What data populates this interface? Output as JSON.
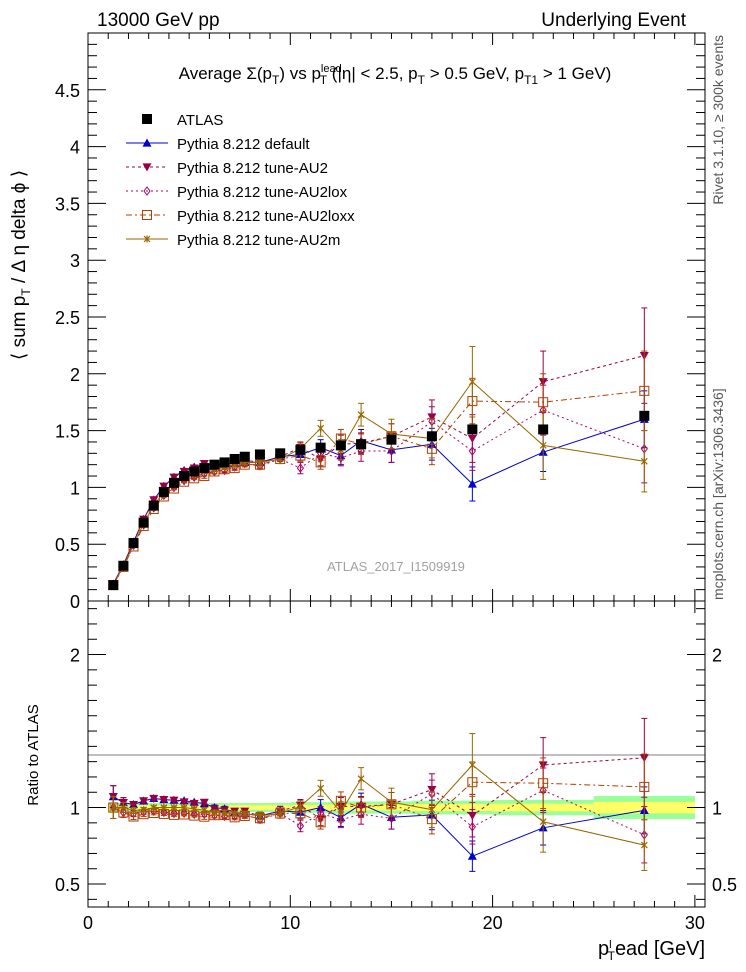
{
  "header": {
    "left": "13000 GeV pp",
    "right": "Underlying Event"
  },
  "side_labels": {
    "rivet": "Rivet 3.1.10, ≥ 300k events",
    "mcplots": "mcplots.cern.ch [arXiv:1306.3436]"
  },
  "watermark": "ATLAS_2017_I1509919",
  "colors": {
    "ATLAS": "#000000",
    "default": "#0000cc",
    "AU2": "#990044",
    "AU2lox": "#aa0066",
    "AU2loxx": "#b04000",
    "AU2m": "#996600",
    "band_inner": "#ffff66",
    "band_outer": "#99ff99"
  },
  "chart_data": {
    "type": "scatter",
    "title": "Average Σ(p_T) vs p_T^lead (|η| < 2.5, p_T > 0.5 GeV, p_T1 > 1 GeV)",
    "xlabel": "p_T^lead [GeV]",
    "ylabel": "⟨ sum p_T / Δ η delta ϕ ⟩",
    "ratio_ylabel": "Ratio to ATLAS",
    "xlim": [
      0,
      30.5
    ],
    "ylim": [
      0,
      5
    ],
    "ratio_ylim": [
      0.35,
      2.35
    ],
    "x_ticks": [
      0,
      10,
      20,
      30
    ],
    "y_ticks": [
      0,
      0.5,
      1,
      1.5,
      2,
      2.5,
      3,
      3.5,
      4,
      4.5
    ],
    "ratio_y_ticks": [
      0.5,
      1,
      2
    ],
    "legend_position": "top-left",
    "x": [
      1.25,
      1.75,
      2.25,
      2.75,
      3.25,
      3.75,
      4.25,
      4.75,
      5.25,
      5.75,
      6.25,
      6.75,
      7.25,
      7.75,
      8.5,
      9.5,
      10.5,
      11.5,
      12.5,
      13.5,
      15.0,
      17.0,
      19.0,
      22.5,
      27.5
    ],
    "series": [
      {
        "key": "ATLAS",
        "name": "ATLAS",
        "values": [
          0.14,
          0.31,
          0.51,
          0.69,
          0.84,
          0.96,
          1.04,
          1.1,
          1.14,
          1.17,
          1.2,
          1.22,
          1.25,
          1.27,
          1.29,
          1.3,
          1.33,
          1.35,
          1.37,
          1.38,
          1.42,
          1.45,
          1.51,
          1.51,
          1.63
        ]
      },
      {
        "key": "default",
        "name": "Pythia 8.212 default",
        "values": [
          0.15,
          0.32,
          0.52,
          0.72,
          0.89,
          1.01,
          1.09,
          1.15,
          1.18,
          1.2,
          1.2,
          1.21,
          1.21,
          1.22,
          1.22,
          1.27,
          1.29,
          1.35,
          1.28,
          1.41,
          1.33,
          1.38,
          1.03,
          1.31,
          1.6
        ],
        "errors": [
          0.01,
          0.01,
          0.01,
          0.01,
          0.01,
          0.01,
          0.01,
          0.01,
          0.01,
          0.02,
          0.02,
          0.02,
          0.02,
          0.02,
          0.03,
          0.04,
          0.05,
          0.07,
          0.08,
          0.1,
          0.11,
          0.14,
          0.15,
          0.17,
          0.25
        ]
      },
      {
        "key": "AU2",
        "name": "Pythia 8.212 tune-AU2",
        "values": [
          0.15,
          0.32,
          0.52,
          0.72,
          0.89,
          1.01,
          1.09,
          1.14,
          1.17,
          1.21,
          1.19,
          1.2,
          1.22,
          1.24,
          1.22,
          1.27,
          1.35,
          1.25,
          1.38,
          1.39,
          1.45,
          1.62,
          1.43,
          1.93,
          2.16
        ],
        "errors": [
          0.01,
          0.01,
          0.01,
          0.01,
          0.01,
          0.01,
          0.01,
          0.01,
          0.01,
          0.02,
          0.02,
          0.02,
          0.02,
          0.02,
          0.03,
          0.04,
          0.05,
          0.06,
          0.08,
          0.09,
          0.11,
          0.15,
          0.21,
          0.27,
          0.42
        ]
      },
      {
        "key": "AU2lox",
        "name": "Pythia 8.212 tune-AU2lox",
        "values": [
          0.14,
          0.3,
          0.49,
          0.67,
          0.82,
          0.93,
          1.0,
          1.06,
          1.09,
          1.12,
          1.14,
          1.15,
          1.18,
          1.21,
          1.19,
          1.25,
          1.17,
          1.3,
          1.26,
          1.32,
          1.32,
          1.58,
          1.32,
          1.68,
          1.34
        ],
        "errors": [
          0.01,
          0.01,
          0.01,
          0.01,
          0.01,
          0.01,
          0.01,
          0.01,
          0.01,
          0.02,
          0.02,
          0.02,
          0.02,
          0.02,
          0.03,
          0.04,
          0.05,
          0.06,
          0.07,
          0.09,
          0.1,
          0.13,
          0.17,
          0.22,
          0.3
        ]
      },
      {
        "key": "AU2loxx",
        "name": "Pythia 8.212 tune-AU2loxx",
        "values": [
          0.14,
          0.3,
          0.48,
          0.66,
          0.81,
          0.92,
          0.99,
          1.05,
          1.08,
          1.1,
          1.14,
          1.16,
          1.17,
          1.2,
          1.2,
          1.25,
          1.28,
          1.22,
          1.43,
          1.38,
          1.45,
          1.34,
          1.76,
          1.75,
          1.85
        ],
        "errors": [
          0.01,
          0.01,
          0.01,
          0.01,
          0.01,
          0.01,
          0.01,
          0.01,
          0.01,
          0.02,
          0.02,
          0.02,
          0.02,
          0.02,
          0.03,
          0.04,
          0.05,
          0.06,
          0.08,
          0.09,
          0.11,
          0.14,
          0.2,
          0.25,
          0.35
        ]
      },
      {
        "key": "AU2m",
        "name": "Pythia 8.212 tune-AU2m",
        "values": [
          0.14,
          0.31,
          0.5,
          0.68,
          0.84,
          0.96,
          1.04,
          1.1,
          1.13,
          1.15,
          1.16,
          1.18,
          1.2,
          1.22,
          1.22,
          1.25,
          1.34,
          1.52,
          1.33,
          1.64,
          1.47,
          1.43,
          1.93,
          1.37,
          1.23
        ],
        "errors": [
          0.01,
          0.01,
          0.01,
          0.01,
          0.01,
          0.01,
          0.01,
          0.01,
          0.01,
          0.02,
          0.02,
          0.02,
          0.02,
          0.02,
          0.03,
          0.04,
          0.05,
          0.07,
          0.09,
          0.1,
          0.13,
          0.17,
          0.31,
          0.3,
          0.27
        ]
      }
    ]
  }
}
